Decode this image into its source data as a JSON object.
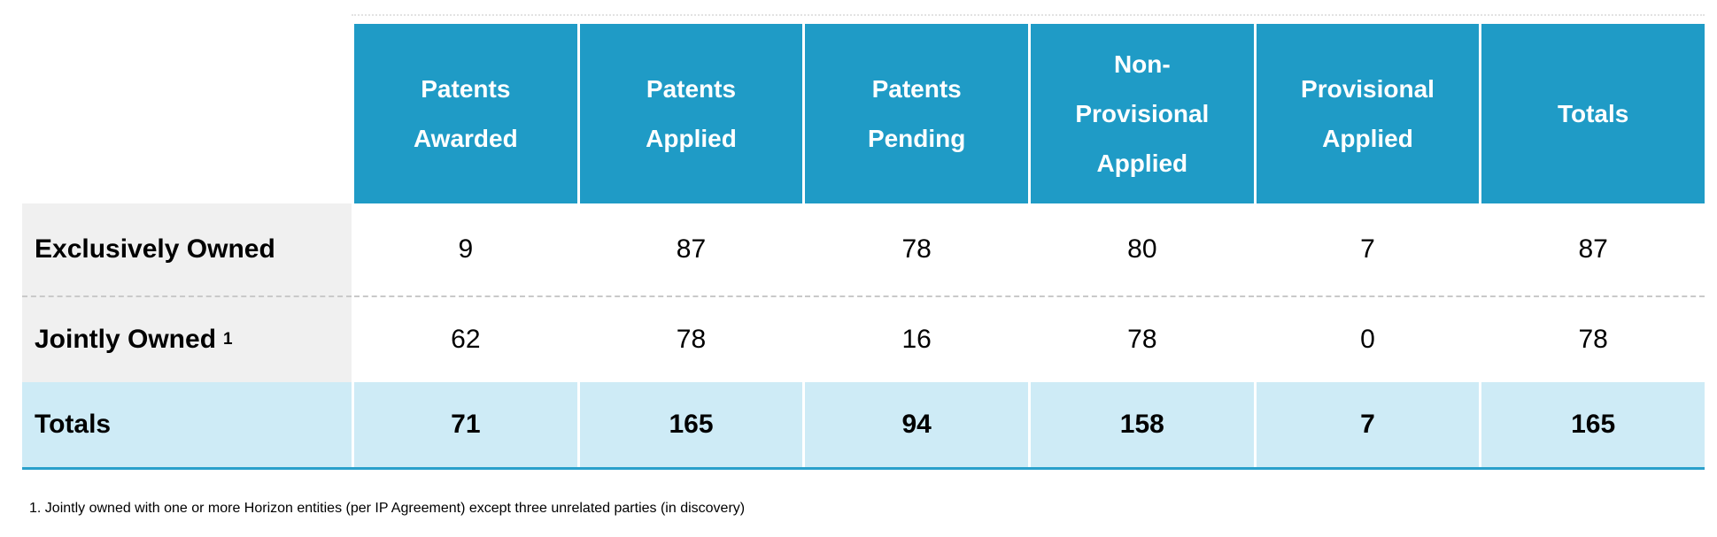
{
  "table": {
    "columns": [
      "Patents Awarded",
      "Patents Applied",
      "Patents Pending",
      "Non-Provisional Applied",
      "Provisional Applied",
      "Totals"
    ],
    "rows": [
      {
        "label": "Exclusively Owned",
        "sup": "",
        "values": [
          "9",
          "87",
          "78",
          "80",
          "7",
          "87"
        ]
      },
      {
        "label": "Jointly Owned",
        "sup": "1",
        "values": [
          "62",
          "78",
          "16",
          "78",
          "0",
          "78"
        ]
      },
      {
        "label": "Totals",
        "sup": "",
        "values": [
          "71",
          "165",
          "94",
          "158",
          "7",
          "165"
        ]
      }
    ],
    "footnote": "1. Jointly owned with one or more Horizon entities (per IP Agreement) except three unrelated parties (in discovery)"
  },
  "colors": {
    "header_teal": "#1f9bc6",
    "totals_light_blue": "#ceebf6",
    "label_gray": "#f0f0f0",
    "totals_bottom_border": "#2aa0cb",
    "dashed_divider": "#c9c9c9"
  }
}
